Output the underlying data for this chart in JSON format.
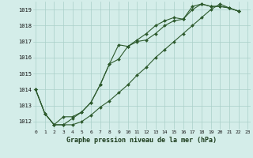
{
  "title": "Graphe pression niveau de la mer (hPa)",
  "background_color": "#d4ede9",
  "grid_color": "#aacfc9",
  "line_color": "#2d5a2d",
  "series1": [
    1014.0,
    1012.5,
    1011.8,
    1012.3,
    1012.3,
    1012.6,
    1013.2,
    1014.3,
    1015.6,
    1016.8,
    1016.7,
    1017.1,
    1017.5,
    1018.0,
    1018.3,
    1018.5,
    1018.4,
    1019.2,
    1019.35,
    1019.2,
    1019.2,
    1019.1,
    1018.9
  ],
  "series2": [
    1014.0,
    1012.5,
    1011.8,
    1011.8,
    1012.2,
    1012.6,
    1013.2,
    1014.3,
    1015.6,
    1015.9,
    1016.7,
    1017.0,
    1017.1,
    1017.5,
    1018.0,
    1018.3,
    1018.4,
    1019.0,
    1019.35,
    1019.2,
    1019.2,
    1019.1,
    1018.9
  ],
  "series3": [
    1014.0,
    1012.5,
    1011.8,
    1011.8,
    1011.8,
    1012.0,
    1012.4,
    1012.9,
    1013.3,
    1013.8,
    1014.3,
    1014.9,
    1015.4,
    1016.0,
    1016.5,
    1017.0,
    1017.5,
    1018.0,
    1018.5,
    1019.0,
    1019.35,
    1019.1,
    1018.9
  ],
  "x_start": 1,
  "ylim": [
    1011.5,
    1019.5
  ],
  "yticks": [
    1012,
    1013,
    1014,
    1015,
    1016,
    1017,
    1018,
    1019
  ],
  "xticks": [
    0,
    1,
    2,
    3,
    4,
    5,
    6,
    7,
    8,
    9,
    10,
    11,
    12,
    13,
    14,
    15,
    16,
    17,
    18,
    19,
    20,
    21,
    22,
    23
  ],
  "marker_size": 2.0,
  "line_width": 0.8
}
